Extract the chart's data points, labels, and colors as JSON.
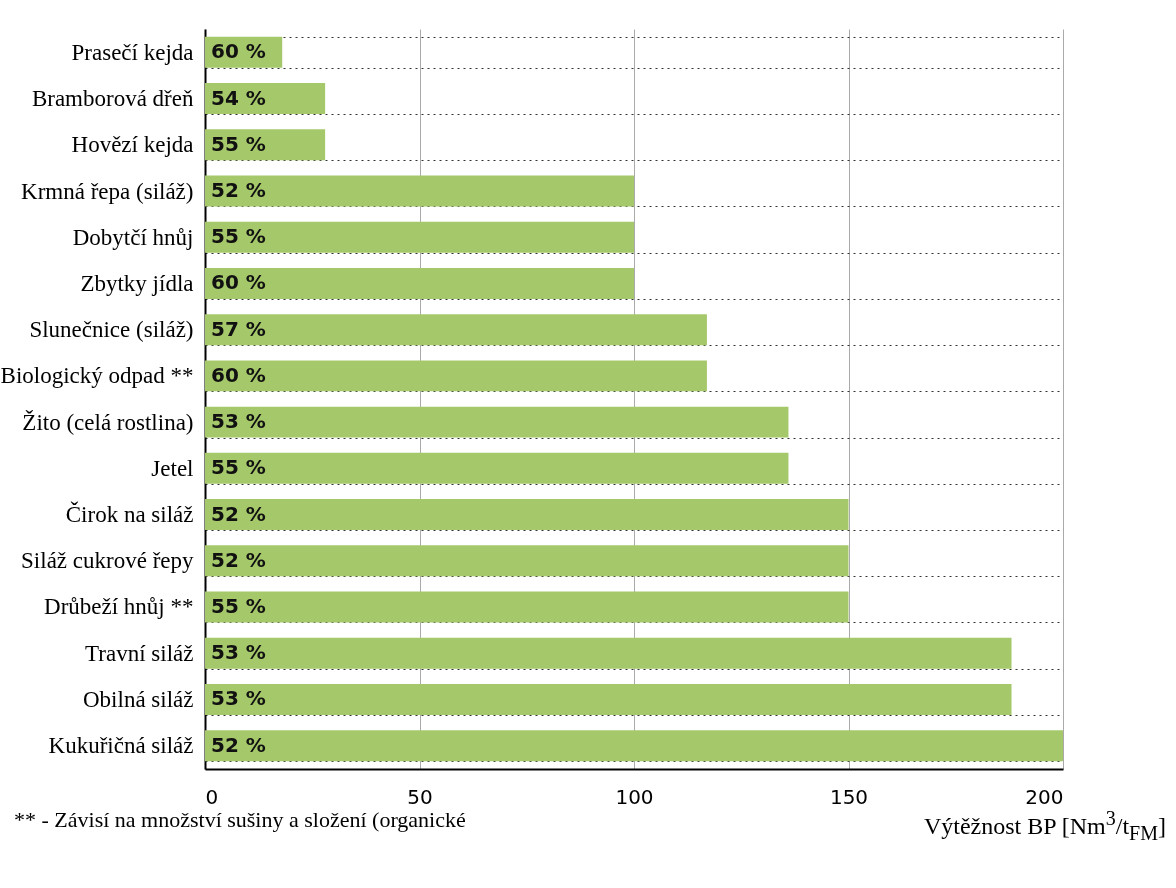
{
  "chart_data": {
    "type": "bar",
    "orientation": "horizontal",
    "xlabel": "Výtěžnost BP [Nm$^{3}$/t$_{FM}$]",
    "categories": [
      "Prasečí kejda",
      "Bramborová dřeň",
      "Hovězí kejda",
      "Krmná řepa (siláž)",
      "Dobytčí hnůj",
      "Zbytky jídla",
      "Slunečnice (siláž)",
      "Biologický odpad **",
      "Žito (celá rostlina)",
      "Jetel",
      "Čirok na siláž",
      "Siláž cukrové řepy",
      "Drůbeží hnůj **",
      "Travní siláž",
      "Obilná siláž",
      "Kukuřičná siláž"
    ],
    "values": [
      18,
      28,
      28,
      100,
      100,
      100,
      117,
      117,
      136,
      136,
      150,
      150,
      150,
      188,
      188,
      200
    ],
    "color": "#a5c96a",
    "xlim": [
      0,
      200
    ],
    "xticks": [
      0,
      50,
      100,
      150,
      200
    ],
    "grid": true,
    "annotations": [
      "** - Závisí na množství sušiny a složení (organické",
      {
        "text": "60 %",
        "y": "Prasečí kejda"
      },
      {
        "text": "54 %",
        "y": "Bramborová dřeň"
      },
      {
        "text": "55 %",
        "y": "Hovězí kejda"
      },
      {
        "text": "52 %",
        "y": "Krmná řepa (siláž)"
      },
      {
        "text": "55 %",
        "y": "Dobytčí hnůj"
      },
      {
        "text": "60 %",
        "y": "Zbytky jídla"
      },
      {
        "text": "57 %",
        "y": "Slunečnice (siláž)"
      },
      {
        "text": "60 %",
        "y": "Biologický odpad **"
      },
      {
        "text": "53 %",
        "y": "Žito (celá rostlina)"
      },
      {
        "text": "55  %",
        "y": "Jetel"
      },
      {
        "text": "52 %",
        "y": "Čirok na siláž"
      },
      {
        "text": "52 %",
        "y": "Siláž cukrové řepy"
      },
      {
        "text": "55 %",
        "y": "Drůbeží hnůj **"
      },
      {
        "text": "53 %",
        "y": "Travní siláž"
      },
      {
        "text": "53 %",
        "y": "Obilná siláž"
      },
      {
        "text": "52 %",
        "y": "Kukuřičná siláž"
      }
    ]
  }
}
